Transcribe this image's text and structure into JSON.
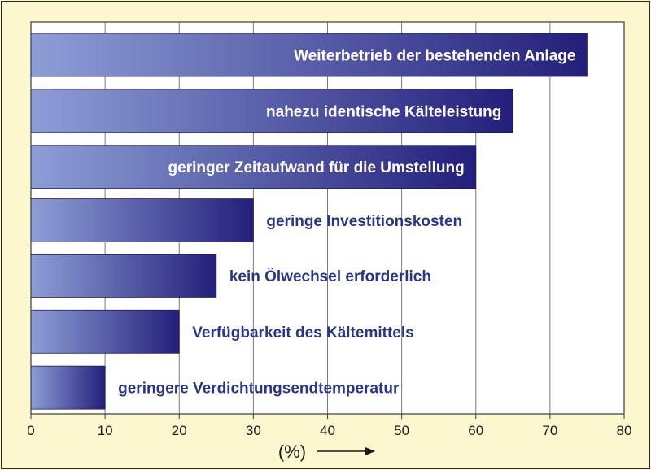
{
  "chart_data": {
    "type": "bar",
    "orientation": "horizontal",
    "categories": [
      "Weiterbetrieb der bestehenden Anlage",
      "nahezu identische Kälteleistung",
      "geringer Zeitaufwand für die Umstellung",
      "geringe Investitionskosten",
      "kein Ölwechsel erforderlich",
      "Verfügbarkeit des Kältemittels",
      "geringere Verdichtungsendtemperatur"
    ],
    "values": [
      75,
      65,
      60,
      30,
      25,
      20,
      10
    ],
    "xlabel": "(%)",
    "xlim": [
      0,
      80
    ],
    "xticks": [
      0,
      10,
      20,
      30,
      40,
      50,
      60,
      70,
      80
    ],
    "grid": "vertical",
    "legend": "none",
    "colors": {
      "bar_light": "#8d9ed6",
      "bar_dark": "#231f7a",
      "label_inside": "#ffffff",
      "label_outside": "#2a3585",
      "plot_bg": "#ffffff",
      "page_bg": "#fdf7cf",
      "grid": "#7a7a7a"
    }
  }
}
